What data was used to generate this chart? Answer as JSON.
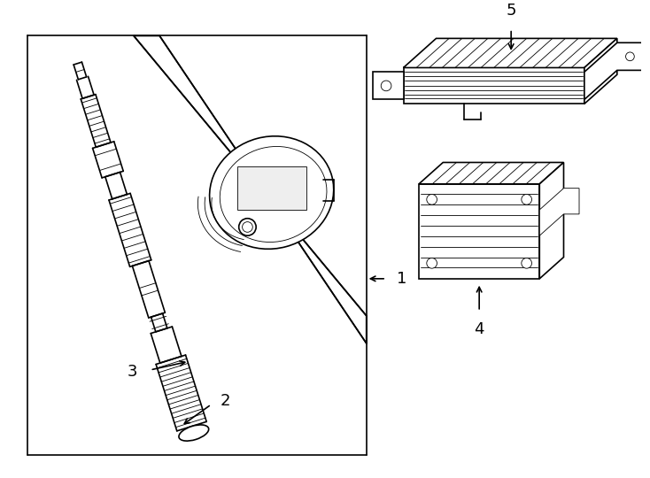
{
  "bg": "#ffffff",
  "lc": "#000000",
  "lw": 1.2,
  "tlw": 0.6,
  "fig_w": 7.34,
  "fig_h": 5.4,
  "dpi": 100
}
